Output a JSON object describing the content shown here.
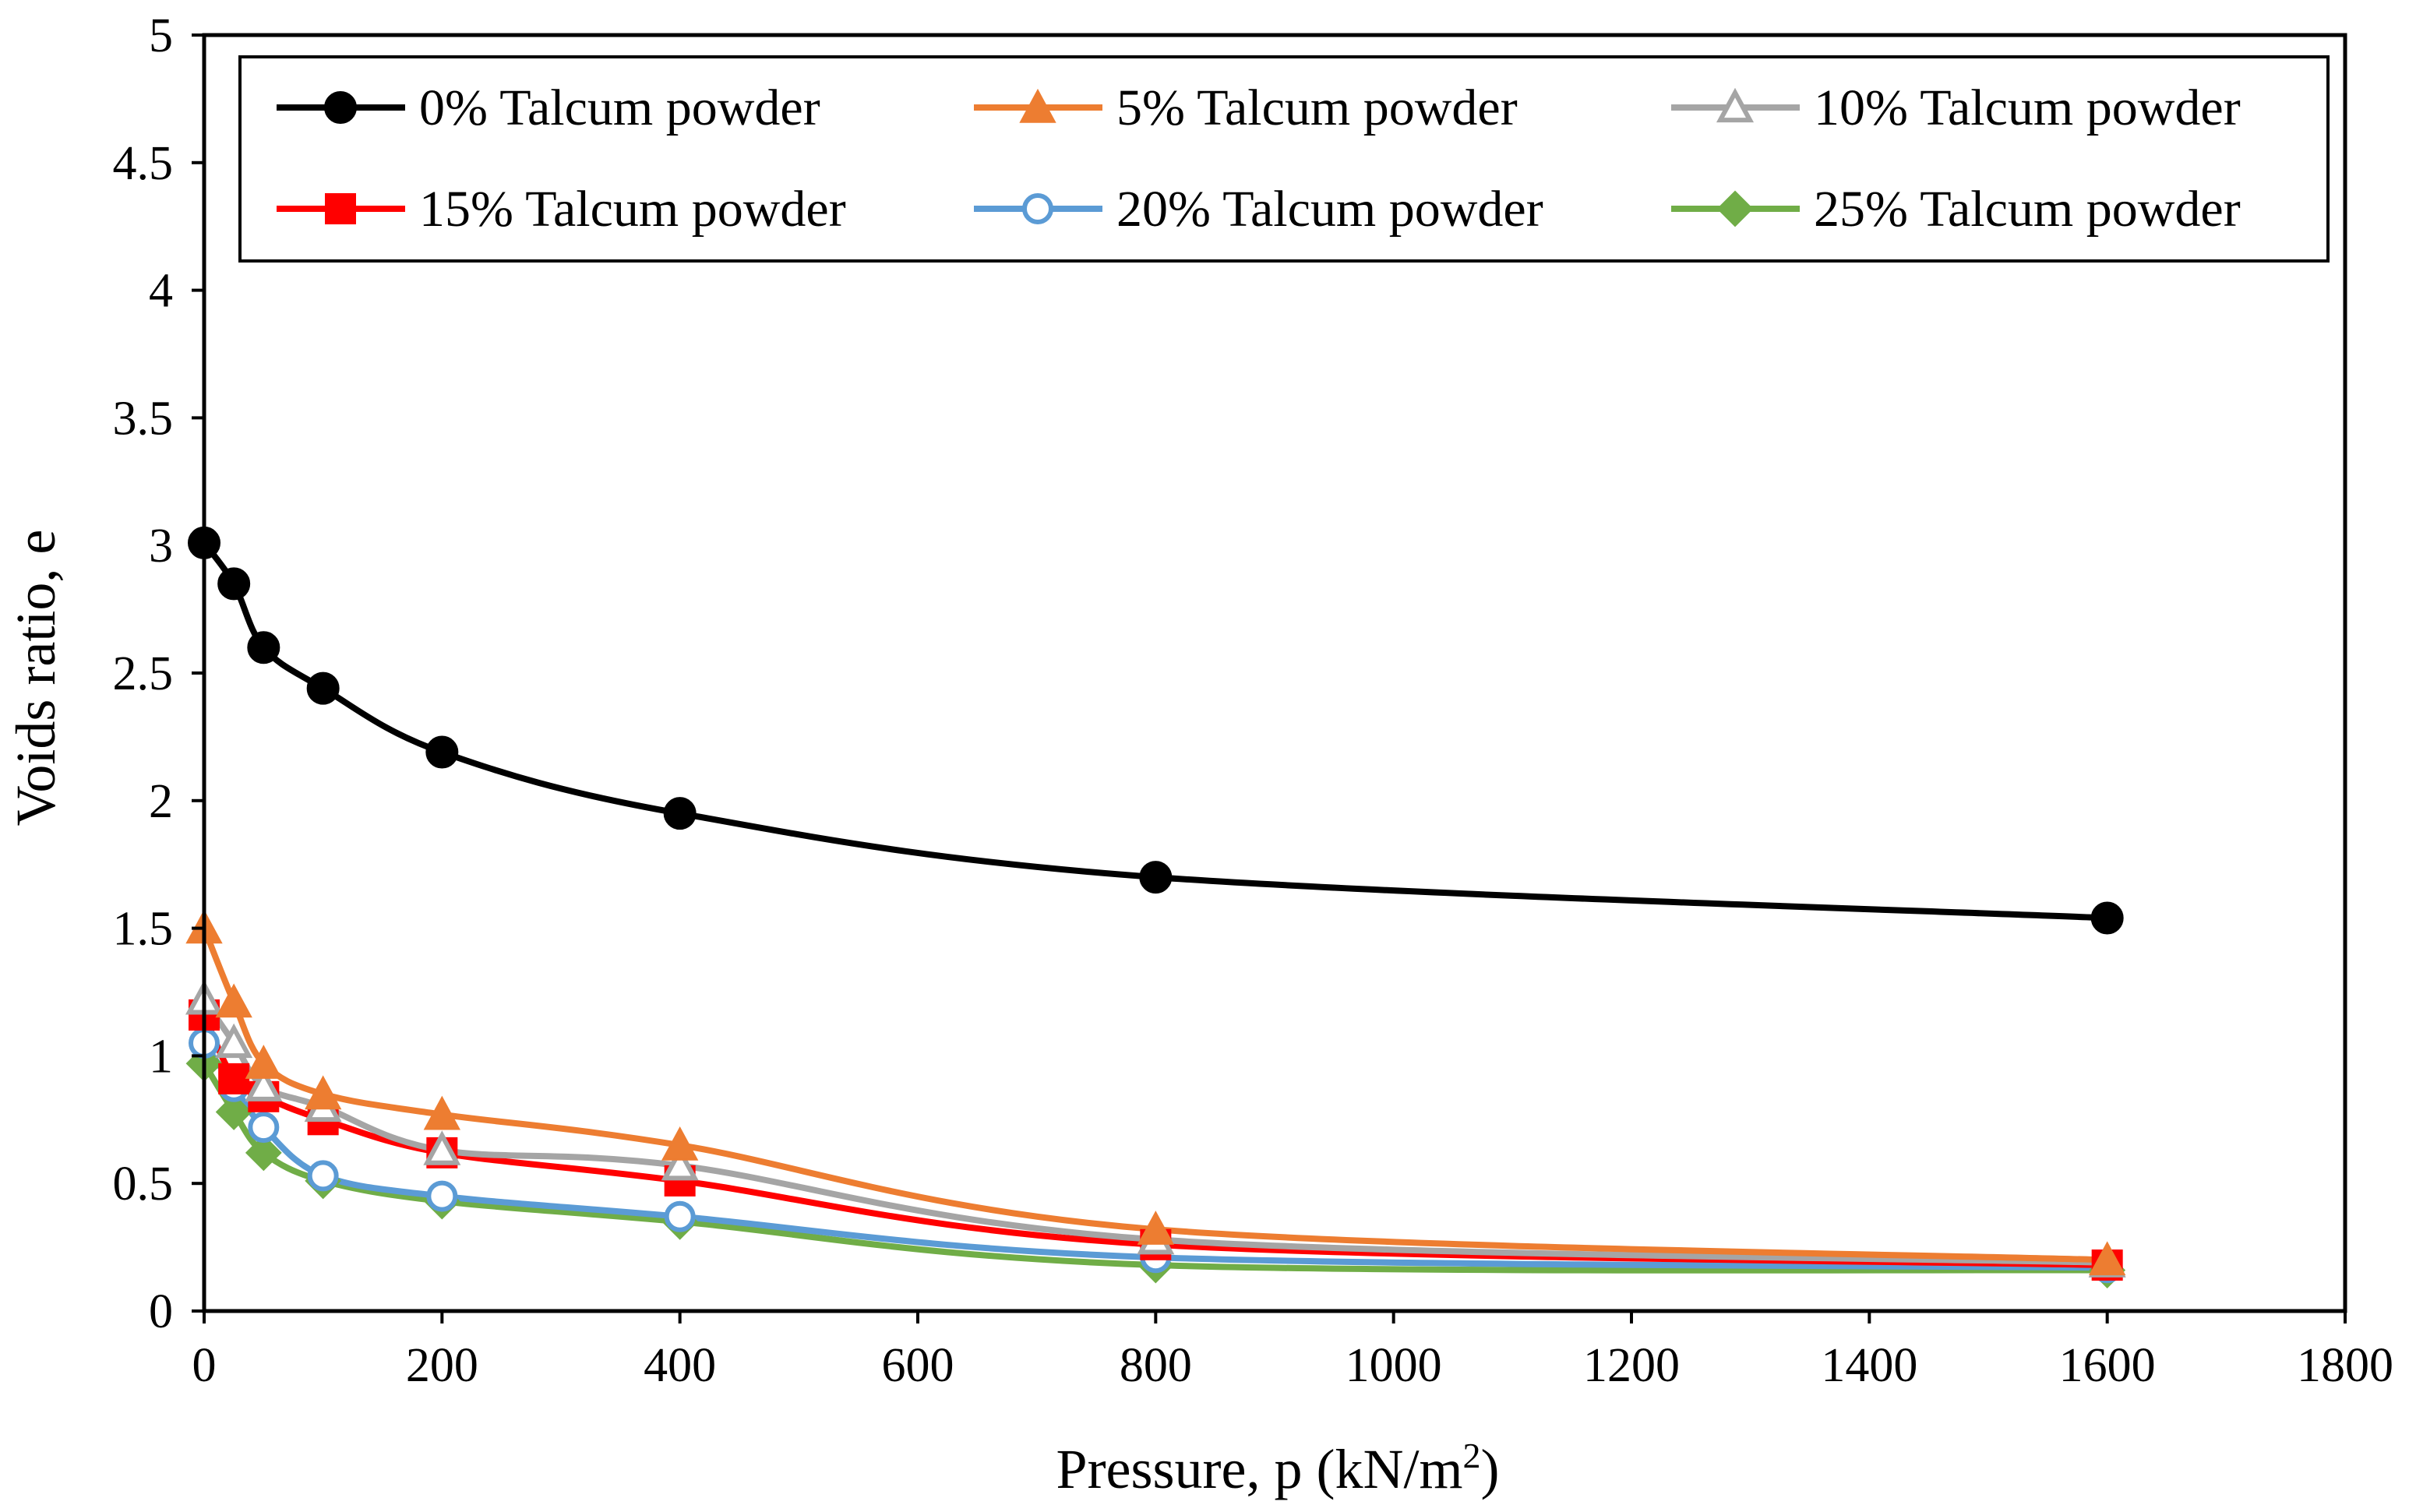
{
  "chart_data": {
    "type": "line",
    "title": "",
    "xlabel": "Pressure, p (kN/m",
    "xlabel_sup": "2",
    "xlabel_end": ")",
    "ylabel": "Voids ratio, e",
    "xlim": [
      0,
      1800
    ],
    "ylim": [
      0,
      5
    ],
    "xticks": [
      "0",
      "200",
      "400",
      "600",
      "800",
      "1000",
      "1200",
      "1400",
      "1600",
      "1800"
    ],
    "yticks": [
      "0",
      "0.5",
      "1",
      "1.5",
      "2",
      "2.5",
      "3",
      "3.5",
      "4",
      "4.5",
      "5"
    ],
    "grid": false,
    "legend_position": "top",
    "x": [
      0,
      25,
      50,
      100,
      200,
      400,
      800,
      1600
    ],
    "series": [
      {
        "name": "0% Talcum powder",
        "color": "#000000",
        "marker": "circle",
        "values": [
          3.01,
          2.85,
          2.6,
          2.44,
          2.19,
          1.95,
          1.7,
          1.54
        ]
      },
      {
        "name": "5% Talcum powder",
        "color": "#ED7D31",
        "marker": "triangle",
        "values": [
          1.5,
          1.21,
          0.97,
          0.85,
          0.77,
          0.65,
          0.32,
          0.2
        ]
      },
      {
        "name": "10% Talcum powder",
        "color": "#A5A5A5",
        "marker": "triangle-open",
        "values": [
          1.22,
          1.05,
          0.88,
          0.8,
          0.63,
          0.57,
          0.28,
          0.19
        ]
      },
      {
        "name": "15% Talcum powder",
        "color": "#FF0000",
        "marker": "square",
        "values": [
          1.16,
          0.91,
          0.84,
          0.75,
          0.62,
          0.51,
          0.26,
          0.18
        ]
      },
      {
        "name": "20% Talcum powder",
        "color": "#5B9BD5",
        "marker": "circle-open",
        "values": [
          1.05,
          0.88,
          0.72,
          0.53,
          0.45,
          0.37,
          0.21,
          0.17
        ]
      },
      {
        "name": "25% Talcum powder",
        "color": "#70AD47",
        "marker": "diamond",
        "values": [
          0.97,
          0.78,
          0.62,
          0.51,
          0.43,
          0.35,
          0.18,
          0.16
        ]
      }
    ]
  }
}
